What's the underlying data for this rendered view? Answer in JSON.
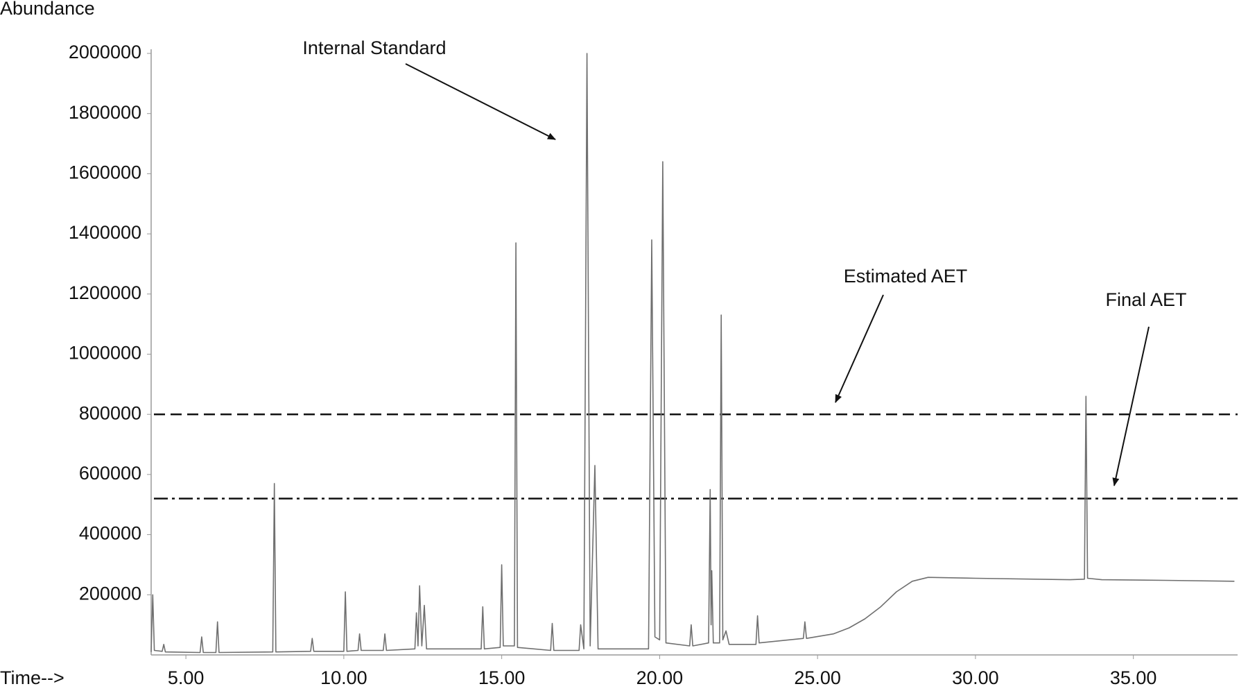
{
  "chart_data": {
    "type": "line",
    "y_label": "Abundance",
    "x_label": "Time-->",
    "annotations": [
      {
        "text": "Internal Standard"
      },
      {
        "text": "Estimated AET"
      },
      {
        "text": "Final AET"
      }
    ],
    "hlines": [
      {
        "label": "Estimated AET",
        "value": 800000,
        "style": "dashed",
        "color": "#111111"
      },
      {
        "label": "Final AET",
        "value": 520000,
        "style": "dashdot",
        "color": "#111111"
      }
    ],
    "xlim": [
      3.9,
      38.3
    ],
    "ylim": [
      0,
      2000000
    ],
    "xticks": [
      {
        "value": 5,
        "label": "5.00"
      },
      {
        "value": 10,
        "label": "10.00"
      },
      {
        "value": 15,
        "label": "15.00"
      },
      {
        "value": 20,
        "label": "20.00"
      },
      {
        "value": 25,
        "label": "25.00"
      },
      {
        "value": 30,
        "label": "30.00"
      },
      {
        "value": 35,
        "label": "35.00"
      }
    ],
    "yticks": [
      200000,
      400000,
      600000,
      800000,
      1000000,
      1200000,
      1400000,
      1600000,
      1800000,
      2000000
    ],
    "series": [
      {
        "color": "#6f6f6f",
        "x": [
          3.9,
          3.95,
          4.0,
          4.25,
          4.3,
          4.35,
          5.45,
          5.5,
          5.55,
          5.95,
          6.0,
          6.05,
          7.75,
          7.8,
          7.85,
          8.95,
          9.0,
          9.05,
          10.0,
          10.05,
          10.1,
          10.45,
          10.5,
          10.55,
          11.25,
          11.3,
          11.35,
          12.25,
          12.3,
          12.35,
          12.4,
          12.47,
          12.55,
          12.62,
          14.35,
          14.4,
          14.45,
          14.95,
          15.0,
          15.05,
          15.4,
          15.45,
          15.5,
          16.55,
          16.6,
          16.65,
          17.45,
          17.5,
          17.6,
          17.7,
          17.8,
          17.95,
          18.05,
          19.65,
          19.75,
          19.85,
          20.0,
          20.1,
          20.2,
          20.95,
          21.0,
          21.05,
          21.55,
          21.6,
          21.63,
          21.65,
          21.7,
          21.9,
          21.95,
          22.0,
          22.1,
          22.2,
          23.05,
          23.1,
          23.15,
          24.55,
          24.6,
          24.65,
          25.5,
          26.0,
          26.5,
          27.0,
          27.5,
          28.0,
          28.5,
          30.0,
          33.0,
          33.45,
          33.5,
          33.55,
          34.0,
          36.0,
          38.2
        ],
        "values": [
          10000,
          200000,
          15000,
          12000,
          35000,
          10000,
          8000,
          60000,
          8000,
          8000,
          110000,
          8000,
          10000,
          570000,
          10000,
          12000,
          55000,
          12000,
          12000,
          210000,
          12000,
          15000,
          70000,
          15000,
          15000,
          70000,
          15000,
          20000,
          140000,
          30000,
          230000,
          30000,
          165000,
          20000,
          20000,
          160000,
          20000,
          25000,
          300000,
          30000,
          30000,
          1370000,
          25000,
          15000,
          105000,
          15000,
          15000,
          100000,
          20000,
          2000000,
          30000,
          630000,
          20000,
          20000,
          1380000,
          60000,
          50000,
          1640000,
          40000,
          30000,
          100000,
          30000,
          40000,
          550000,
          100000,
          280000,
          40000,
          40000,
          1130000,
          50000,
          80000,
          35000,
          35000,
          130000,
          40000,
          55000,
          110000,
          55000,
          70000,
          90000,
          120000,
          160000,
          210000,
          245000,
          258000,
          255000,
          250000,
          252000,
          860000,
          255000,
          250000,
          248000,
          245000
        ]
      }
    ]
  }
}
